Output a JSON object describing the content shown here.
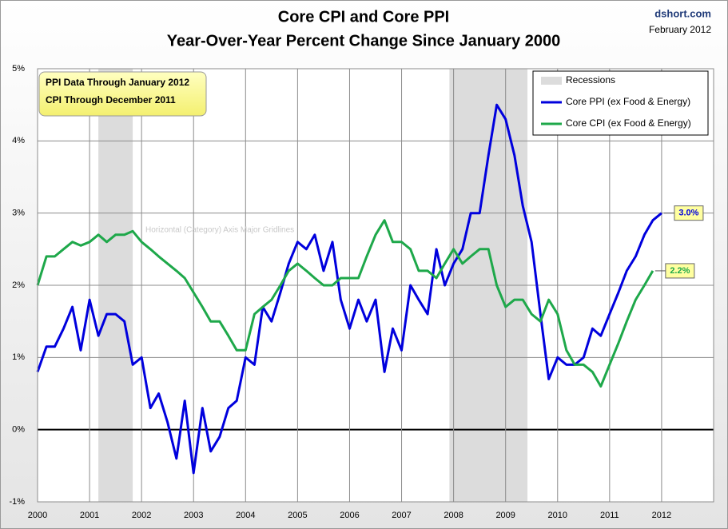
{
  "chart_data": {
    "type": "line",
    "title": "Core CPI and Core PPI",
    "subtitle": "Year-Over-Year Percent Change Since January 2000",
    "source": "dshort.com",
    "date": "February 2012",
    "annotation": [
      "PPI Data Through January 2012",
      "CPI Through December 2011"
    ],
    "ghost_text": "Horizontal (Category) Axis Major Gridlines",
    "x": [
      2000,
      2000.17,
      2000.33,
      2000.5,
      2000.67,
      2000.83,
      2001,
      2001.17,
      2001.33,
      2001.5,
      2001.67,
      2001.83,
      2002,
      2002.17,
      2002.33,
      2002.5,
      2002.67,
      2002.83,
      2003,
      2003.17,
      2003.33,
      2003.5,
      2003.67,
      2003.83,
      2004,
      2004.17,
      2004.33,
      2004.5,
      2004.67,
      2004.83,
      2005,
      2005.17,
      2005.33,
      2005.5,
      2005.67,
      2005.83,
      2006,
      2006.17,
      2006.33,
      2006.5,
      2006.67,
      2006.83,
      2007,
      2007.17,
      2007.33,
      2007.5,
      2007.67,
      2007.83,
      2008,
      2008.17,
      2008.33,
      2008.5,
      2008.67,
      2008.83,
      2009,
      2009.17,
      2009.33,
      2009.5,
      2009.67,
      2009.83,
      2010,
      2010.17,
      2010.33,
      2010.5,
      2010.67,
      2010.83,
      2011,
      2011.17,
      2011.33,
      2011.5,
      2011.67,
      2011.83,
      2012
    ],
    "series": [
      {
        "name": "Core PPI (ex Food & Energy)",
        "color": "#0000dd",
        "values": [
          0.8,
          1.15,
          1.15,
          1.4,
          1.7,
          1.1,
          1.8,
          1.3,
          1.6,
          1.6,
          1.5,
          0.9,
          1.0,
          0.3,
          0.5,
          0.1,
          -0.4,
          0.4,
          -0.6,
          0.3,
          -0.3,
          -0.1,
          0.3,
          0.4,
          1.0,
          0.9,
          1.7,
          1.5,
          1.9,
          2.3,
          2.6,
          2.5,
          2.7,
          2.2,
          2.6,
          1.8,
          1.4,
          1.8,
          1.5,
          1.8,
          0.8,
          1.4,
          1.1,
          2.0,
          1.8,
          1.6,
          2.5,
          2.0,
          2.3,
          2.5,
          3.0,
          3.0,
          3.8,
          4.5,
          4.3,
          3.8,
          3.1,
          2.6,
          1.6,
          0.7,
          1.0,
          0.9,
          0.9,
          1.0,
          1.4,
          1.3,
          1.6,
          1.9,
          2.2,
          2.4,
          2.7,
          2.9,
          3.0
        ],
        "value_labels": [
          null,
          null,
          null,
          null,
          null,
          null,
          null,
          null,
          null,
          null,
          null,
          null,
          null,
          null,
          null,
          null,
          null,
          null,
          null,
          null,
          null,
          null,
          null,
          null,
          null,
          null,
          null,
          null,
          null,
          null,
          null,
          null,
          null,
          null,
          null,
          null,
          null,
          null,
          null,
          null,
          null,
          null,
          null,
          null,
          null,
          null,
          null,
          null,
          null,
          null,
          null,
          null,
          null,
          null,
          null,
          null,
          null,
          null,
          null,
          null,
          null,
          null,
          null,
          null,
          null,
          null,
          null,
          null,
          null,
          null,
          null,
          null,
          "3.0%"
        ]
      },
      {
        "name": "Core CPI (ex Food & Energy)",
        "color": "#1ea84a",
        "values": [
          2.0,
          2.4,
          2.4,
          2.5,
          2.6,
          2.55,
          2.6,
          2.7,
          2.6,
          2.7,
          2.7,
          2.75,
          2.6,
          2.5,
          2.4,
          2.3,
          2.2,
          2.1,
          1.9,
          1.7,
          1.5,
          1.5,
          1.3,
          1.1,
          1.1,
          1.6,
          1.7,
          1.8,
          2.0,
          2.2,
          2.3,
          2.2,
          2.1,
          2.0,
          2.0,
          2.1,
          2.1,
          2.1,
          2.4,
          2.7,
          2.9,
          2.6,
          2.6,
          2.5,
          2.2,
          2.2,
          2.1,
          2.3,
          2.5,
          2.3,
          2.4,
          2.5,
          2.5,
          2.0,
          1.7,
          1.8,
          1.8,
          1.6,
          1.5,
          1.8,
          1.6,
          1.1,
          0.9,
          0.9,
          0.8,
          0.6,
          0.9,
          1.2,
          1.5,
          1.8,
          2.0,
          2.2,
          null
        ],
        "value_labels": [
          null,
          null,
          null,
          null,
          null,
          null,
          null,
          null,
          null,
          null,
          null,
          null,
          null,
          null,
          null,
          null,
          null,
          null,
          null,
          null,
          null,
          null,
          null,
          null,
          null,
          null,
          null,
          null,
          null,
          null,
          null,
          null,
          null,
          null,
          null,
          null,
          null,
          null,
          null,
          null,
          null,
          null,
          null,
          null,
          null,
          null,
          null,
          null,
          null,
          null,
          null,
          null,
          null,
          null,
          null,
          null,
          null,
          null,
          null,
          null,
          null,
          null,
          null,
          null,
          null,
          null,
          null,
          null,
          null,
          null,
          null,
          "2.2%",
          null
        ]
      }
    ],
    "recessions": {
      "name": "Recessions",
      "color": "#dcdcdc",
      "ranges": [
        [
          2001.17,
          2001.83
        ],
        [
          2007.92,
          2009.42
        ]
      ]
    },
    "xlim": [
      2000,
      2013
    ],
    "xticks": [
      2000,
      2001,
      2002,
      2003,
      2004,
      2005,
      2006,
      2007,
      2008,
      2009,
      2010,
      2011,
      2012
    ],
    "ylim": [
      -1,
      5
    ],
    "yticks": [
      {
        "value": -1,
        "label": "-1%"
      },
      {
        "value": 0,
        "label": "0%"
      },
      {
        "value": 1,
        "label": "1%"
      },
      {
        "value": 2,
        "label": "2%"
      },
      {
        "value": 3,
        "label": "3%"
      },
      {
        "value": 4,
        "label": "4%"
      },
      {
        "value": 5,
        "label": "5%"
      }
    ],
    "grid": true,
    "legend": "top-right"
  }
}
